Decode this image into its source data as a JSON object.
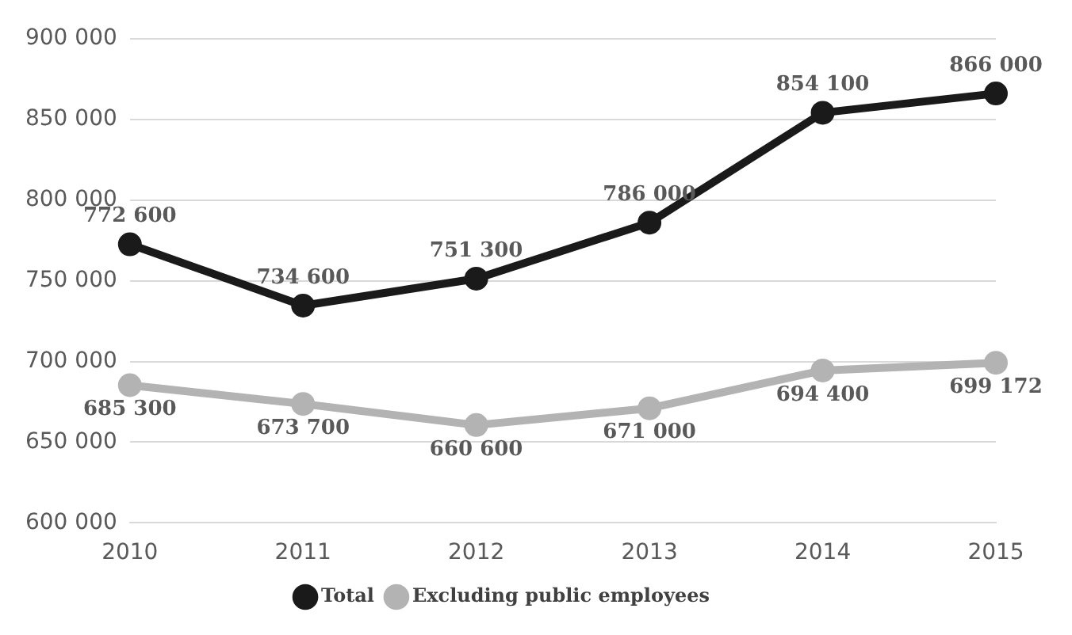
{
  "chart_data": {
    "type": "line",
    "categories": [
      "2010",
      "2011",
      "2012",
      "2013",
      "2014",
      "2015"
    ],
    "series": [
      {
        "name": "Total",
        "color": "#1a1a1a",
        "values": [
          772600,
          734600,
          751300,
          786000,
          854100,
          866000
        ]
      },
      {
        "name": "Excluding public employees",
        "color": "#b3b3b3",
        "values": [
          685300,
          673700,
          660600,
          671000,
          694400,
          699172
        ]
      }
    ],
    "ylim": [
      600000,
      900000
    ],
    "yticks": [
      {
        "value": 600000,
        "label": "600 000"
      },
      {
        "value": 650000,
        "label": "650 000"
      },
      {
        "value": 700000,
        "label": "700 000"
      },
      {
        "value": 750000,
        "label": "750 000"
      },
      {
        "value": 800000,
        "label": "800 000"
      },
      {
        "value": 850000,
        "label": "850 000"
      },
      {
        "value": 900000,
        "label": "900 000"
      }
    ],
    "grid": "y",
    "legend": "bottom",
    "marker": "circle",
    "line_style": "solid",
    "data_labels": true
  }
}
